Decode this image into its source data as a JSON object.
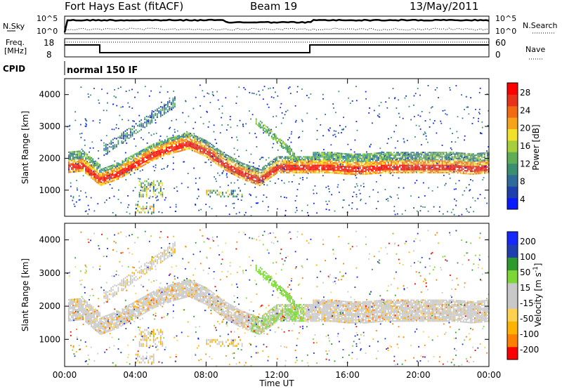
{
  "header": {
    "radar": "Fort Hays East (fitACF)",
    "beam": "Beam 19",
    "date": "13/May/2011"
  },
  "noise_panel": {
    "left_label": "N.Sky",
    "right_label": "N.Search",
    "ticks_left": [
      "10^5",
      "10^0"
    ],
    "ticks_right": [
      "10^5",
      "10^0"
    ]
  },
  "freq_panel": {
    "left_label_1": "Freq.",
    "left_label_2": "[MHz]",
    "right_label": "Nave",
    "ticks_left": [
      "18",
      "8"
    ],
    "ticks_right": [
      "60",
      "0"
    ]
  },
  "cpid": {
    "label": "CPID",
    "value": "normal 150 IF"
  },
  "chart_data": [
    {
      "type": "heatmap",
      "title": "",
      "ylabel": "Slant Range [km]",
      "xlabel": "",
      "xlim": [
        "00:00",
        "24:00"
      ],
      "ylim": [
        180,
        4500
      ],
      "yticks": [
        "1000",
        "2000",
        "3000",
        "4000"
      ],
      "colorbar": {
        "label": "Power [dB]",
        "ticks": [
          "28",
          "24",
          "20",
          "16",
          "12",
          "8",
          "4"
        ],
        "range": [
          0,
          30
        ],
        "colors": [
          "#0a1aff",
          "#1e3fae",
          "#2c6b9a",
          "#3a8f72",
          "#5fae55",
          "#a6cf3c",
          "#f2e12a",
          "#f7a21b",
          "#f26a12",
          "#e8321a",
          "#ff0000"
        ]
      },
      "bands": [
        {
          "description": "main ionospheric scatter",
          "time_start": 0.2,
          "time_end": 24,
          "range_km": [
            1700,
            1750,
            1300,
            1500,
            1800,
            2100,
            2300,
            2450,
            2200,
            1800,
            1500,
            1300,
            1700,
            1700,
            1700,
            1700,
            1650,
            1650,
            1700,
            1700,
            1700,
            1700,
            1700,
            1650,
            1700
          ]
        }
      ]
    },
    {
      "type": "heatmap",
      "title": "",
      "ylabel": "Slant Range [km]",
      "xlabel": "Time UT",
      "xticks": [
        "00:00",
        "04:00",
        "08:00",
        "12:00",
        "16:00",
        "20:00",
        "00:00"
      ],
      "ylim": [
        180,
        4500
      ],
      "yticks": [
        "1000",
        "2000",
        "3000",
        "4000"
      ],
      "colorbar": {
        "label": "Velocity [m s",
        "label_sup": "-1",
        "label_end": "]",
        "ticks": [
          "200",
          "100",
          "50",
          "15",
          "-15",
          "-50",
          "-100",
          "-200"
        ],
        "range": [
          -250,
          250
        ],
        "colors": [
          "#ff0000",
          "#ff7f00",
          "#ffb300",
          "#ffd24d",
          "#c8c8c8",
          "#c8c8c8",
          "#7bd636",
          "#2e9a2e",
          "#1f3fb0",
          "#1428ff"
        ]
      }
    }
  ]
}
